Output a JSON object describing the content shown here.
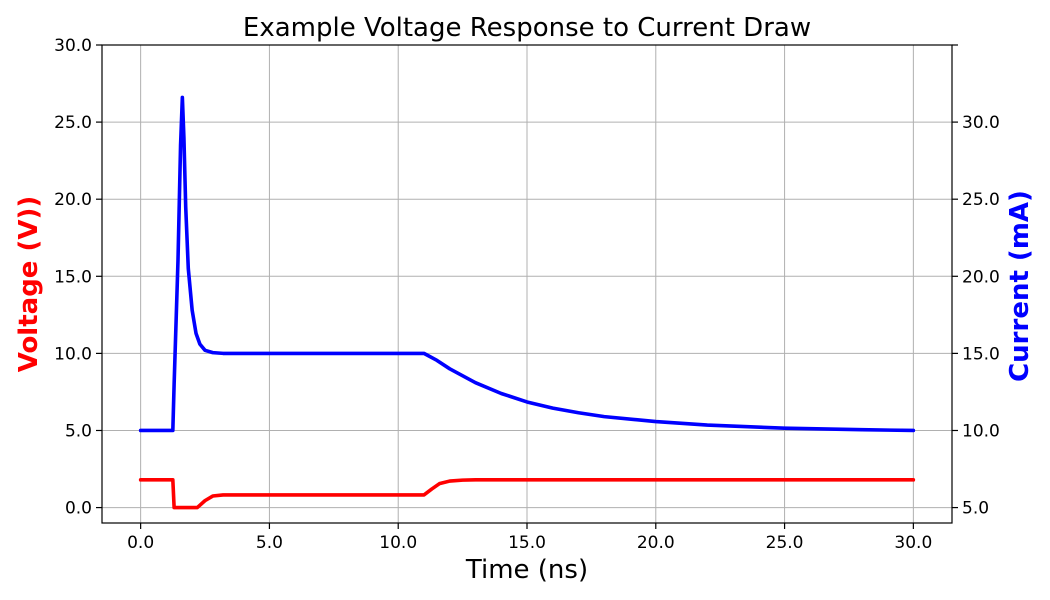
{
  "chart_data": {
    "type": "line",
    "title": "Example Voltage Response to Current Draw",
    "xlabel": "Time (ns)",
    "ylabel_left": "Voltage (V))",
    "ylabel_right": "Current (mA)",
    "xlim": [
      -1.5,
      31.5
    ],
    "ylim_left": [
      -1,
      30
    ],
    "ylim_right": [
      4,
      35
    ],
    "x_ticks": [
      0.0,
      5.0,
      10.0,
      15.0,
      20.0,
      25.0,
      30.0
    ],
    "x_tick_labels": [
      "0.0",
      "5.0",
      "10.0",
      "15.0",
      "20.0",
      "25.0",
      "30.0"
    ],
    "y_left_ticks": [
      0.0,
      5.0,
      10.0,
      15.0,
      20.0,
      25.0,
      30.0
    ],
    "y_left_tick_labels": [
      "0.0",
      "5.0",
      "10.0",
      "15.0",
      "20.0",
      "25.0",
      "30.0"
    ],
    "y_right_ticks": [
      5.0,
      10.0,
      15.0,
      20.0,
      25.0,
      30.0,
      35.0
    ],
    "y_right_tick_labels": [
      "5.0",
      "10.0",
      "15.0",
      "20.0",
      "25.0",
      "30.0",
      ""
    ],
    "grid": true,
    "colors": {
      "voltage": "#ff0000",
      "current": "#0000ff",
      "grid": "#b0b0b0"
    },
    "series": [
      {
        "axis": "left",
        "color": "#ff0000",
        "x": [
          0,
          1.25,
          1.3,
          2.2,
          2.5,
          2.8,
          3.2,
          4,
          11,
          11.3,
          11.6,
          12,
          12.5,
          13,
          30
        ],
        "y": [
          1.8,
          1.8,
          0.0,
          0.0,
          0.45,
          0.75,
          0.82,
          0.82,
          0.82,
          1.2,
          1.55,
          1.72,
          1.78,
          1.8,
          1.8
        ]
      },
      {
        "axis": "right",
        "color": "#0000ff",
        "x": [
          0,
          1.25,
          1.3,
          1.45,
          1.55,
          1.62,
          1.68,
          1.75,
          1.85,
          2.0,
          2.15,
          2.3,
          2.5,
          2.8,
          3.2,
          11,
          11.5,
          12,
          13,
          14,
          15,
          16,
          17,
          18,
          20,
          22,
          25,
          28,
          30
        ],
        "y": [
          10.0,
          10.0,
          13.0,
          21.0,
          28.5,
          31.6,
          29.0,
          24.5,
          20.5,
          17.8,
          16.3,
          15.6,
          15.2,
          15.05,
          15.0,
          15.0,
          14.55,
          14.0,
          13.1,
          12.4,
          11.85,
          11.45,
          11.15,
          10.9,
          10.58,
          10.35,
          10.15,
          10.05,
          10.0
        ]
      }
    ]
  }
}
